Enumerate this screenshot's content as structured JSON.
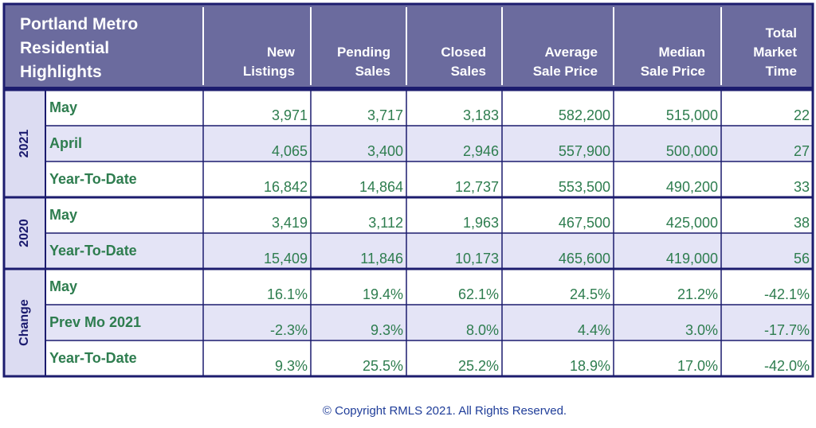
{
  "chart_data": {
    "type": "table",
    "title": "Portland Metro Residential Highlights",
    "title_lines": [
      "Portland Metro",
      "Residential",
      "Highlights"
    ],
    "columns": [
      {
        "lines": [
          "New",
          "Listings"
        ]
      },
      {
        "lines": [
          "Pending",
          "Sales"
        ]
      },
      {
        "lines": [
          "Closed",
          "Sales"
        ]
      },
      {
        "lines": [
          "Average",
          "Sale Price"
        ]
      },
      {
        "lines": [
          "Median",
          "Sale Price"
        ]
      },
      {
        "lines": [
          "Total",
          "Market",
          "Time"
        ]
      }
    ],
    "groups": [
      {
        "label": "2021",
        "rows": [
          {
            "label": "May",
            "values": [
              "3,971",
              "3,717",
              "3,183",
              "582,200",
              "515,000",
              "22"
            ]
          },
          {
            "label": "April",
            "values": [
              "4,065",
              "3,400",
              "2,946",
              "557,900",
              "500,000",
              "27"
            ]
          },
          {
            "label": "Year-To-Date",
            "values": [
              "16,842",
              "14,864",
              "12,737",
              "553,500",
              "490,200",
              "33"
            ]
          }
        ]
      },
      {
        "label": "2020",
        "rows": [
          {
            "label": "May",
            "values": [
              "3,419",
              "3,112",
              "1,963",
              "467,500",
              "425,000",
              "38"
            ]
          },
          {
            "label": "Year-To-Date",
            "values": [
              "15,409",
              "11,846",
              "10,173",
              "465,600",
              "419,000",
              "56"
            ]
          }
        ]
      },
      {
        "label": "Change",
        "rows": [
          {
            "label": "May",
            "values": [
              "16.1%",
              "19.4%",
              "62.1%",
              "24.5%",
              "21.2%",
              "-42.1%"
            ]
          },
          {
            "label": "Prev Mo 2021",
            "values": [
              "-2.3%",
              "9.3%",
              "8.0%",
              "4.4%",
              "3.0%",
              "-17.7%"
            ]
          },
          {
            "label": "Year-To-Date",
            "values": [
              "9.3%",
              "25.5%",
              "25.2%",
              "18.9%",
              "17.0%",
              "-42.0%"
            ]
          }
        ]
      }
    ]
  },
  "footer": {
    "copyright": "© Copyright RMLS 2021. All Rights Reserved."
  },
  "colors": {
    "header_bg": "#6b6b9e",
    "header_text": "#ffffff",
    "group_band_bg": "#dcdcf2",
    "group_band_text": "#1a1a6e",
    "row_light": "#ffffff",
    "row_shaded": "#e4e4f6",
    "value_text": "#2e7d4f",
    "row_label_text": "#2e7d4f",
    "border_dark": "#1c1c6e",
    "copyright_text": "#1f3d99"
  }
}
